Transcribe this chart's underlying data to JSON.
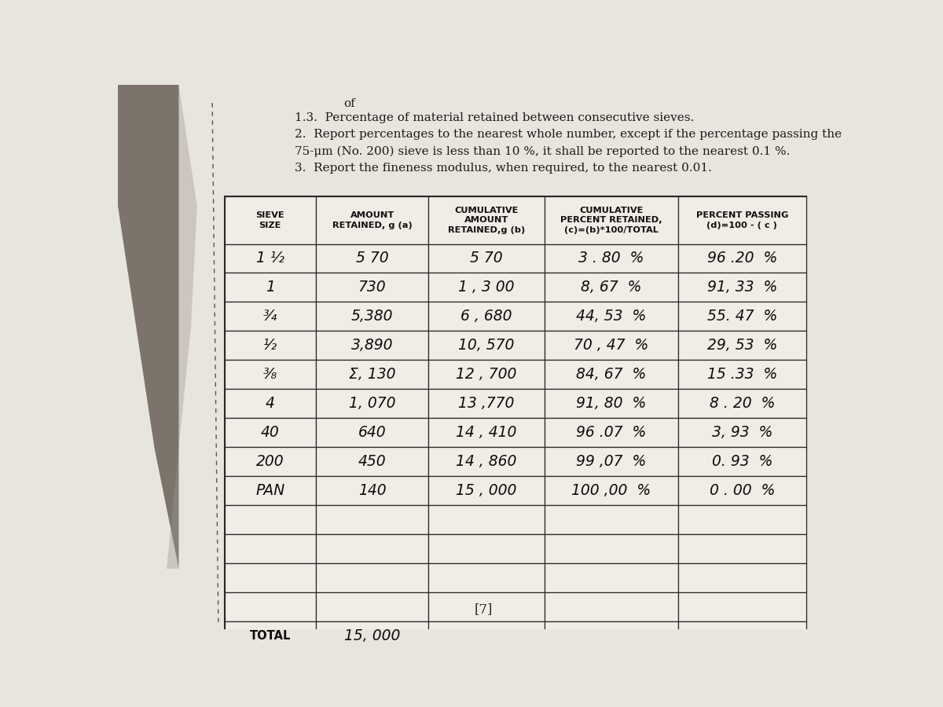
{
  "title_prefix": "of",
  "title_lines": [
    "1.3.  Percentage of material retained between consecutive sieves.",
    "2.  Report percentages to the nearest whole number, except if the percentage passing the",
    "75-μm (No. 200) sieve is less than 10 %, it shall be reported to the nearest 0.1 %.",
    "3.  Report the fineness modulus, when required, to the nearest 0.01."
  ],
  "header_texts": [
    "SIEVE\nSIZE",
    "AMOUNT\nRETAINED, g (a)",
    "CUMULATIVE\nAMOUNT\nRETAINED,g (b)",
    "CUMULATIVE\nPERCENT RETAINED,\n(c)=(b)*100/TOTAL",
    "PERCENT PASSING\n(d)=100 - ( c )"
  ],
  "data_rows": [
    [
      "1 ¹⁄₂",
      "5 70",
      "5 70",
      "3 . 80  %",
      "96 .20  %"
    ],
    [
      "1",
      "730",
      "1 , 3 00",
      "8, 67  %",
      "91, 33  %"
    ],
    [
      "³⁄₄",
      "5,380",
      "6 , 680",
      "44, 53  %",
      "55. 47  %"
    ],
    [
      "¹⁄₂",
      "3,890",
      "10, 570",
      "70 , 47  %",
      "29, 53  %"
    ],
    [
      "³⁄₈",
      "Σ, 130",
      "12 , 700",
      "84, 67  %",
      "15 .33  %"
    ],
    [
      "4",
      "1, 070",
      "13 ,770",
      "91, 80  %",
      "8 . 20  %"
    ],
    [
      "40",
      "640",
      "14 , 410",
      "96 .07  %",
      "3, 93  %"
    ],
    [
      "200",
      "450",
      "14 , 860",
      "99 ,07  %",
      "0. 93  %"
    ],
    [
      "PAN",
      "140",
      "15 , 000",
      "100 ,00  %",
      "0 . 00  %"
    ],
    [
      "",
      "",
      "",
      "",
      ""
    ],
    [
      "",
      "",
      "",
      "",
      ""
    ],
    [
      "",
      "",
      "",
      "",
      ""
    ],
    [
      "",
      "",
      "",
      "",
      ""
    ]
  ],
  "total_row": [
    "TOTAL",
    "15, 000",
    "",
    "",
    ""
  ],
  "page_number": "[7]",
  "bg_color": "#d8d4cc",
  "paper_color": "#e8e5de",
  "table_bg": "#f0ede6",
  "line_color": "#2a2a2a",
  "text_color": "#111111",
  "shadow_color": "#5a5040"
}
